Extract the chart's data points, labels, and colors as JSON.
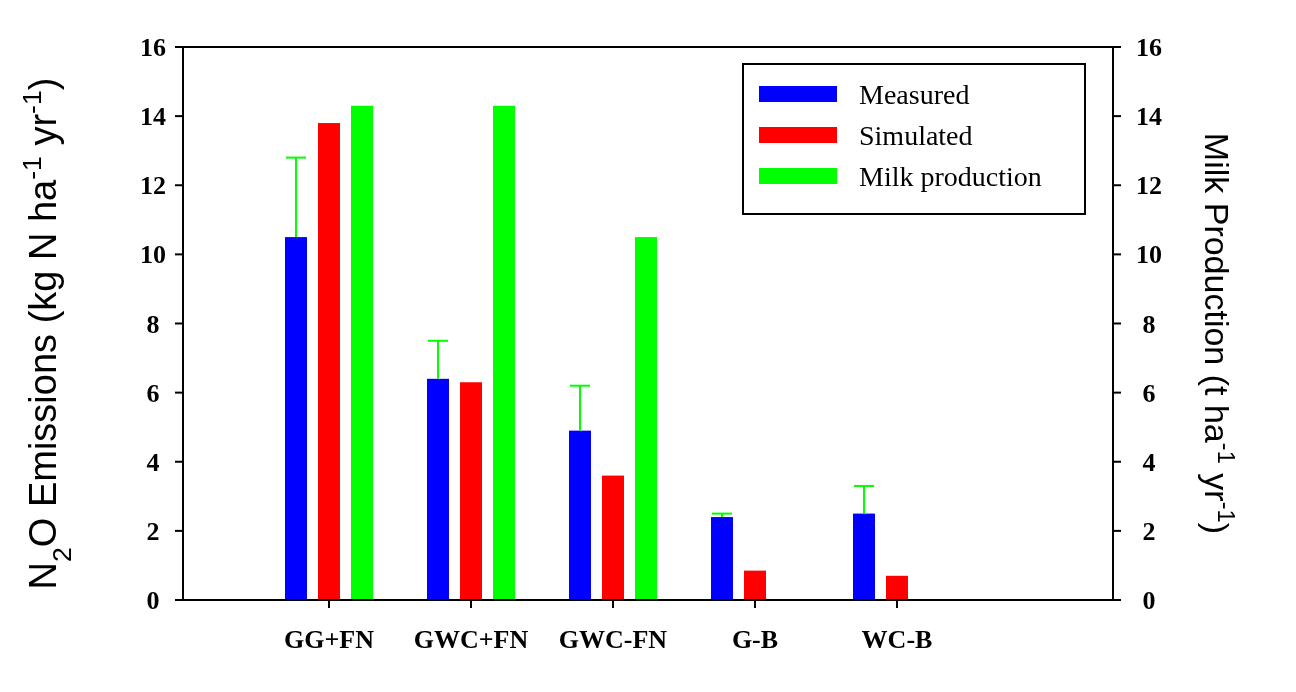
{
  "chart_data": {
    "type": "bar",
    "categories": [
      "GG+FN",
      "GWC+FN",
      "GWC-FN",
      "G-B",
      "WC-B"
    ],
    "ylabel": "N$_{2}$O Emissions (kg N ha$^{-1}$ yr$^{-1}$)",
    "y2label": "Milk Production (t ha$^{-1}$ yr$^{-1}$)",
    "ylim": [
      0,
      16
    ],
    "yticks": [
      0,
      2,
      4,
      6,
      8,
      10,
      12,
      14,
      16
    ],
    "y2lim": [
      0,
      16
    ],
    "y2ticks": [
      0,
      2,
      4,
      6,
      8,
      10,
      12,
      14,
      16
    ],
    "legend": "top right",
    "series": [
      {
        "name": "Measured",
        "color": "#0000ff",
        "values": [
          10.5,
          6.4,
          4.9,
          2.4,
          2.5
        ],
        "errors": [
          [
            10.5,
            12.8
          ],
          [
            6.4,
            7.5
          ],
          [
            4.9,
            6.2
          ],
          [
            2.4,
            2.5
          ],
          [
            2.5,
            3.3
          ]
        ]
      },
      {
        "name": "Simulated",
        "color": "#ff0000",
        "values": [
          13.8,
          6.3,
          3.6,
          0.85,
          0.7
        ]
      },
      {
        "name": "Milk production",
        "color": "#00ff00",
        "axis": "y2",
        "values": [
          14.3,
          14.3,
          10.5,
          null,
          null
        ]
      }
    ]
  }
}
